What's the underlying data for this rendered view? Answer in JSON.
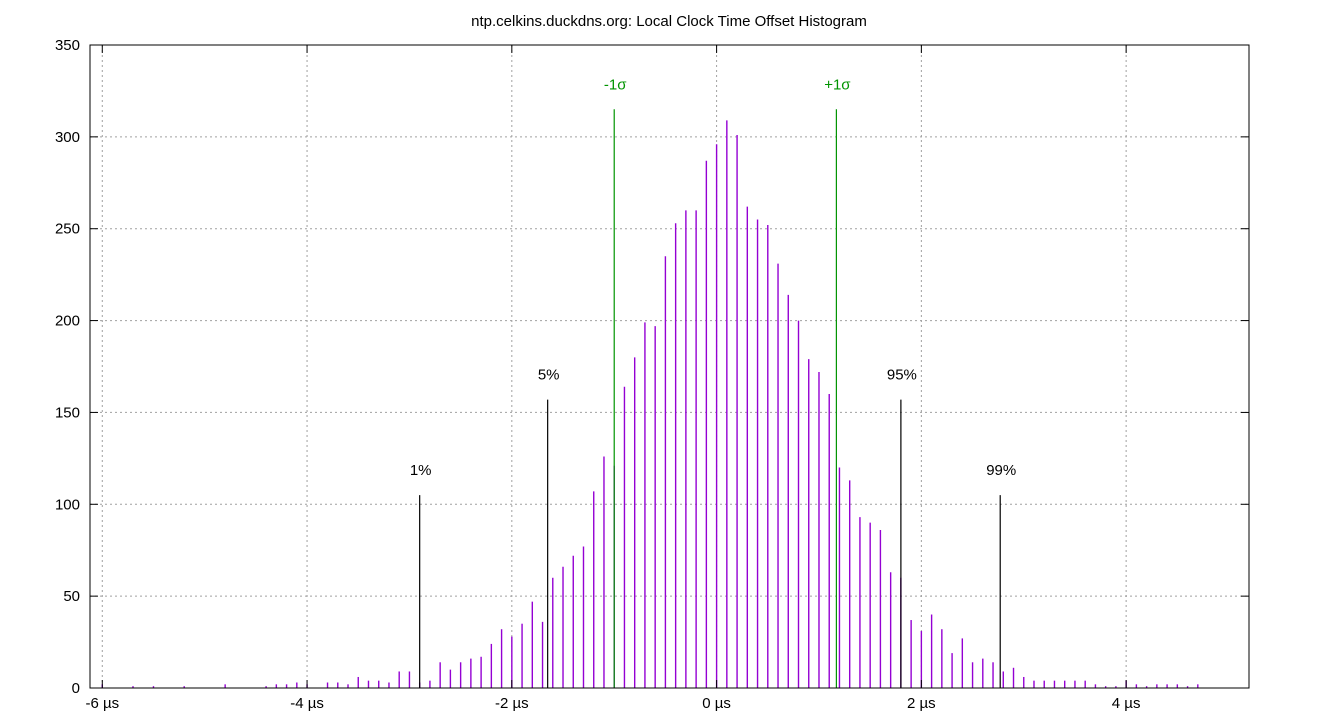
{
  "chart_data": {
    "type": "bar",
    "title": "ntp.celkins.duckdns.org: Local Clock Time Offset Histogram",
    "xlabel": "",
    "ylabel": "",
    "x_unit": "µs",
    "xlim": [
      -6.12,
      5.2
    ],
    "ylim": [
      0,
      350
    ],
    "x_ticks": [
      -6,
      -4,
      -2,
      0,
      2,
      4
    ],
    "x_tick_labels": [
      "-6 µs",
      "-4 µs",
      "-2 µs",
      "0 µs",
      "2 µs",
      "4 µs"
    ],
    "y_ticks": [
      0,
      50,
      100,
      150,
      200,
      250,
      300,
      350
    ],
    "y_tick_labels": [
      "0",
      "50",
      "100",
      "150",
      "200",
      "250",
      "300",
      "350"
    ],
    "grid": true,
    "series": [
      {
        "color": "#9400d3",
        "x": [
          -6.0,
          -5.7,
          -5.5,
          -5.2,
          -4.8,
          -4.4,
          -4.3,
          -4.2,
          -4.1,
          -4.0,
          -3.8,
          -3.7,
          -3.6,
          -3.5,
          -3.4,
          -3.3,
          -3.2,
          -3.1,
          -3.0,
          -2.9,
          -2.8,
          -2.7,
          -2.6,
          -2.5,
          -2.4,
          -2.3,
          -2.2,
          -2.1,
          -2.0,
          -1.9,
          -1.8,
          -1.7,
          -1.6,
          -1.5,
          -1.4,
          -1.3,
          -1.2,
          -1.1,
          -1.0,
          -0.9,
          -0.8,
          -0.7,
          -0.6,
          -0.5,
          -0.4,
          -0.3,
          -0.2,
          -0.1,
          0.0,
          0.1,
          0.2,
          0.3,
          0.4,
          0.5,
          0.6,
          0.7,
          0.8,
          0.9,
          1.0,
          1.1,
          1.2,
          1.3,
          1.4,
          1.5,
          1.6,
          1.7,
          1.8,
          1.9,
          2.0,
          2.1,
          2.2,
          2.3,
          2.4,
          2.5,
          2.6,
          2.7,
          2.8,
          2.9,
          3.0,
          3.1,
          3.2,
          3.3,
          3.4,
          3.5,
          3.6,
          3.7,
          3.8,
          3.9,
          4.0,
          4.1,
          4.2,
          4.3,
          4.4,
          4.5,
          4.6,
          4.7
        ],
        "values": [
          2,
          1,
          1,
          1,
          2,
          1,
          2,
          2,
          3,
          2,
          3,
          3,
          2,
          6,
          4,
          4,
          3,
          9,
          9,
          3,
          4,
          14,
          10,
          14,
          16,
          17,
          24,
          32,
          28,
          35,
          47,
          36,
          60,
          66,
          72,
          77,
          107,
          126,
          121,
          164,
          180,
          199,
          197,
          235,
          253,
          260,
          260,
          287,
          296,
          309,
          301,
          262,
          255,
          252,
          231,
          214,
          200,
          179,
          172,
          160,
          120,
          113,
          93,
          90,
          86,
          63,
          60,
          37,
          31,
          40,
          32,
          19,
          27,
          14,
          16,
          14,
          9,
          11,
          6,
          4,
          4,
          4,
          4,
          4,
          4,
          2,
          1,
          1,
          4,
          2,
          1,
          2,
          2,
          2,
          1,
          2
        ]
      }
    ],
    "markers": [
      {
        "label": "1%",
        "x": -2.9,
        "y": 105,
        "color": "#000000"
      },
      {
        "label": "5%",
        "x": -1.65,
        "y": 157,
        "color": "#000000"
      },
      {
        "label": "-1σ",
        "x": -1.0,
        "y": 315,
        "color": "#009400"
      },
      {
        "label": "+1σ",
        "x": 1.17,
        "y": 315,
        "color": "#009400"
      },
      {
        "label": "95%",
        "x": 1.8,
        "y": 157,
        "color": "#000000"
      },
      {
        "label": "99%",
        "x": 2.77,
        "y": 105,
        "color": "#000000"
      }
    ]
  }
}
